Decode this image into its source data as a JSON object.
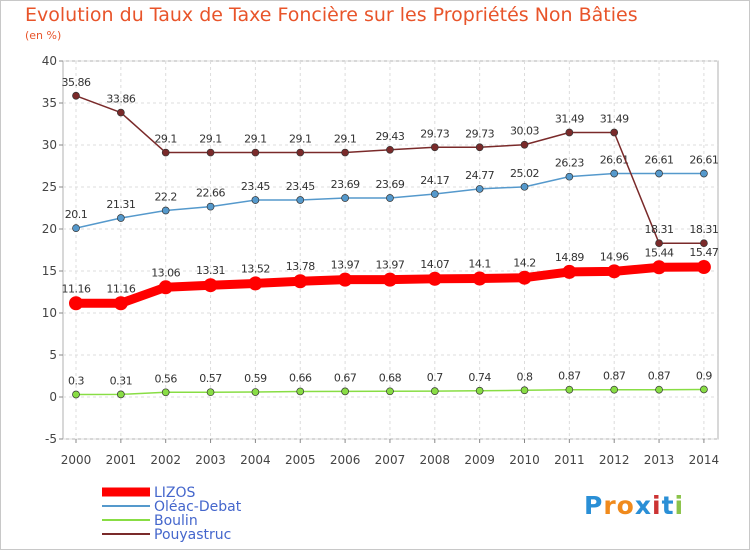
{
  "title": "Evolution du Taux de Taxe Foncière sur les Propriétés Non Bâties",
  "unit_label": "(en %)",
  "logo_text": "Proxiti",
  "logo_colors": [
    "#2a8fd6",
    "#f08a1c",
    "#f08a1c",
    "#2a8fd6",
    "#cc3333",
    "#2a8fd6",
    "#8bc34a"
  ],
  "chart_data": {
    "type": "line",
    "title": "Evolution du Taux de Taxe Foncière sur les Propriétés Non Bâties",
    "xlabel": "",
    "ylabel": "(en %)",
    "ylim": [
      -5,
      40
    ],
    "yticks": [
      "-5",
      "0",
      "5",
      "10",
      "15",
      "20",
      "25",
      "30",
      "35",
      "40"
    ],
    "categories": [
      "2000",
      "2001",
      "2002",
      "2003",
      "2004",
      "2005",
      "2006",
      "2007",
      "2008",
      "2009",
      "2010",
      "2011",
      "2012",
      "2013",
      "2014"
    ],
    "legend_position": "bottom-left",
    "series": [
      {
        "name": "LIZOS",
        "color": "#ff0000",
        "values": [
          11.16,
          11.16,
          13.06,
          13.31,
          13.52,
          13.78,
          13.97,
          13.97,
          14.07,
          14.1,
          14.2,
          14.89,
          14.96,
          15.44,
          15.47
        ],
        "labels": [
          "11.16",
          "11.16",
          "13.06",
          "13.31",
          "13.52",
          "13.78",
          "13.97",
          "13.97",
          "14.07",
          "14.1",
          "14.2",
          "14.89",
          "14.96",
          "15.44",
          "15.47"
        ]
      },
      {
        "name": "Oléac-Debat",
        "color": "#5599cc",
        "values": [
          20.1,
          21.31,
          22.2,
          22.66,
          23.45,
          23.45,
          23.69,
          23.69,
          24.17,
          24.77,
          25.02,
          26.23,
          26.61,
          26.61,
          26.61
        ],
        "labels": [
          "20.1",
          "21.31",
          "22.2",
          "22.66",
          "23.45",
          "23.45",
          "23.69",
          "23.69",
          "24.17",
          "24.77",
          "25.02",
          "26.23",
          "26.61",
          "26.61",
          "26.61"
        ]
      },
      {
        "name": "Boulin",
        "color": "#88dd44",
        "values": [
          0.3,
          0.31,
          0.56,
          0.57,
          0.59,
          0.66,
          0.67,
          0.68,
          0.7,
          0.74,
          0.8,
          0.87,
          0.87,
          0.87,
          0.9
        ],
        "labels": [
          "0.3",
          "0.31",
          "0.56",
          "0.57",
          "0.59",
          "0.66",
          "0.67",
          "0.68",
          "0.7",
          "0.74",
          "0.8",
          "0.87",
          "0.87",
          "0.87",
          "0.9"
        ]
      },
      {
        "name": "Pouyastruc",
        "color": "#7a2a2a",
        "values": [
          35.86,
          33.86,
          29.1,
          29.1,
          29.1,
          29.1,
          29.1,
          29.43,
          29.73,
          29.73,
          30.03,
          31.49,
          31.49,
          18.31,
          18.31
        ],
        "labels": [
          "35.86",
          "33.86",
          "29.1",
          "29.1",
          "29.1",
          "29.1",
          "29.1",
          "29.43",
          "29.73",
          "29.73",
          "30.03",
          "31.49",
          "31.49",
          "18.31",
          "18.31"
        ]
      }
    ]
  }
}
